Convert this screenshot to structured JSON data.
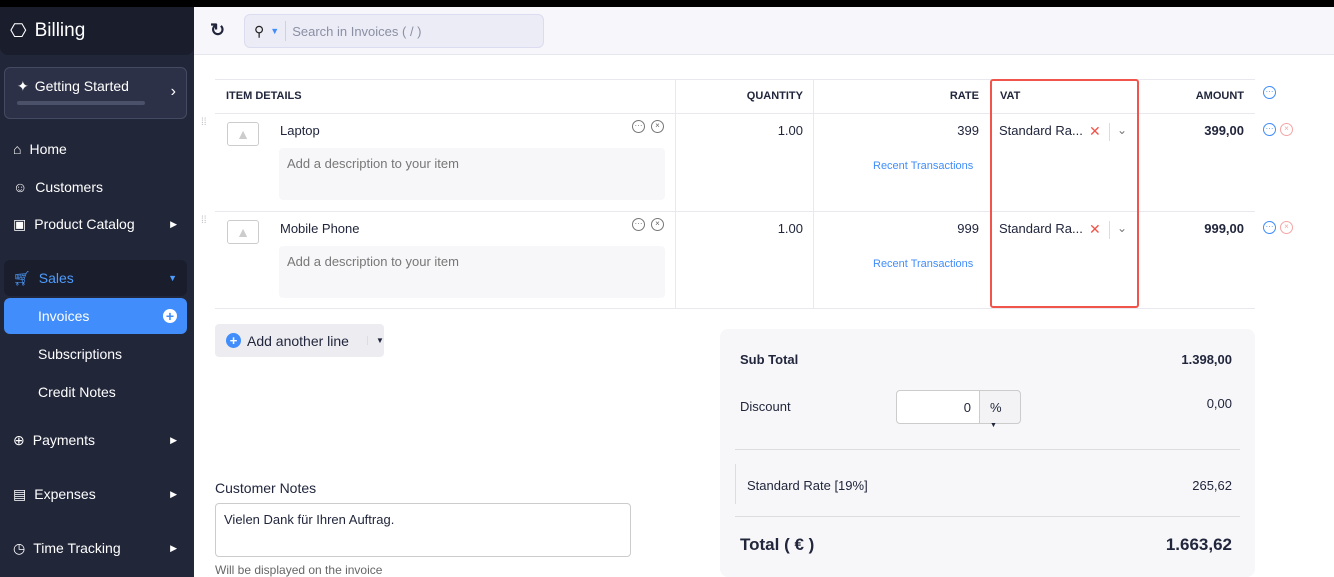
{
  "app": {
    "title": "Billing"
  },
  "sidebar": {
    "getting_started": "Getting Started",
    "items": [
      {
        "label": "Home",
        "icon": "home-icon"
      },
      {
        "label": "Customers",
        "icon": "user-icon"
      },
      {
        "label": "Product Catalog",
        "icon": "bag-icon"
      },
      {
        "label": "Sales",
        "icon": "cart-icon"
      },
      {
        "label": "Invoices"
      },
      {
        "label": "Subscriptions"
      },
      {
        "label": "Credit Notes"
      },
      {
        "label": "Payments",
        "icon": "payments-icon"
      },
      {
        "label": "Expenses",
        "icon": "receipt-icon"
      },
      {
        "label": "Time Tracking",
        "icon": "clock-icon"
      }
    ]
  },
  "header": {
    "search_placeholder": "Search in Invoices ( / )"
  },
  "table": {
    "headers": [
      "ITEM DETAILS",
      "QUANTITY",
      "RATE",
      "VAT",
      "AMOUNT"
    ],
    "rows": [
      {
        "name": "Laptop",
        "desc_placeholder": "Add a description to your item",
        "qty": "1.00",
        "rate": "399",
        "link": "Recent Transactions",
        "vat": "Standard Ra...",
        "amount": "399,00"
      },
      {
        "name": "Mobile Phone",
        "desc_placeholder": "Add a description to your item",
        "qty": "1.00",
        "rate": "999",
        "link": "Recent Transactions",
        "vat": "Standard Ra...",
        "amount": "999,00"
      }
    ]
  },
  "add_line": "Add another line",
  "totals": {
    "subtotal_label": "Sub Total",
    "subtotal": "1.398,00",
    "discount_label": "Discount",
    "discount_value": "0",
    "discount_unit": "%",
    "discount_amount": "0,00",
    "tax_label": "Standard Rate [19%]",
    "tax": "265,62",
    "total_label": "Total ( € )",
    "total": "1.663,62"
  },
  "notes": {
    "label": "Customer Notes",
    "value": "Vielen Dank für Ihren Auftrag.",
    "hint": "Will be displayed on the invoice"
  },
  "colors": {
    "accent": "#408dfb",
    "highlight": "#f1544a",
    "sidebar": "#222639"
  }
}
